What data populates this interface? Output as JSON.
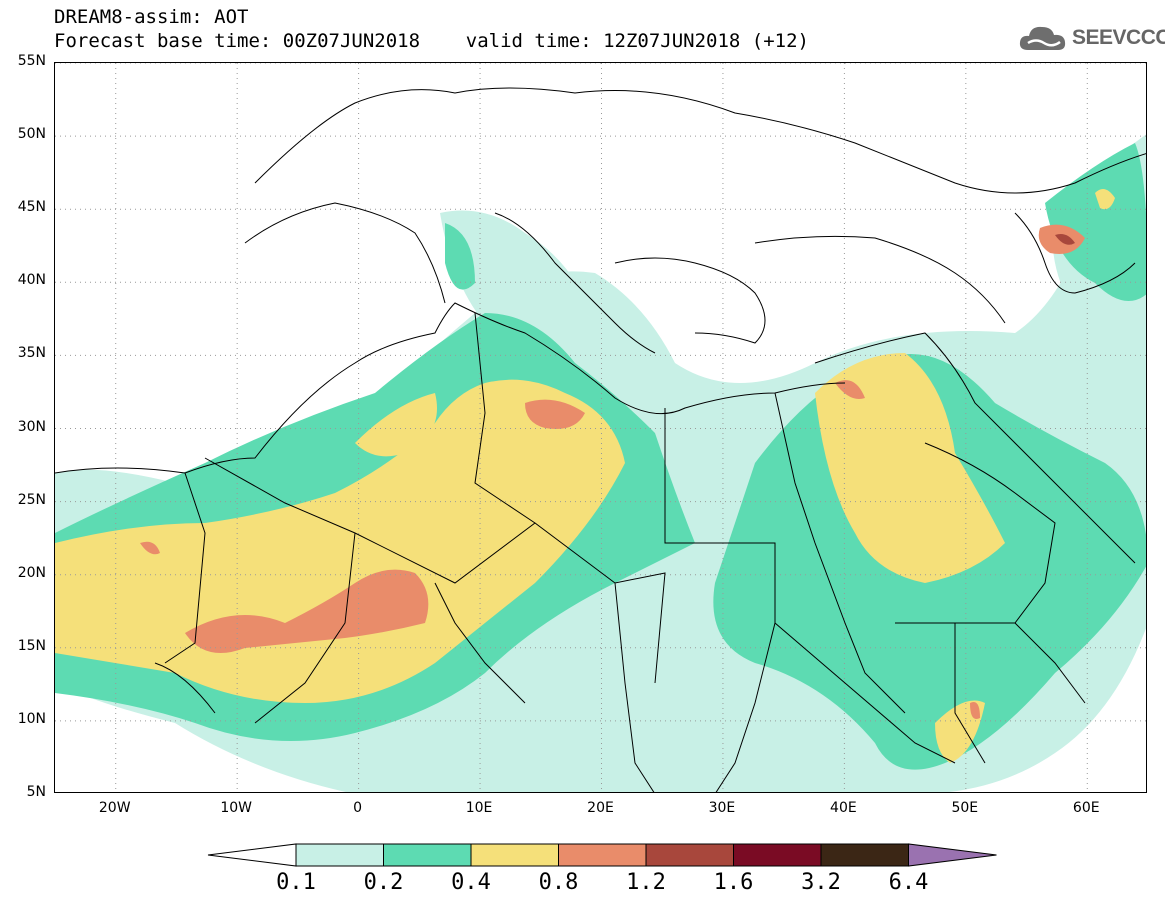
{
  "title": {
    "line1": "DREAM8-assim: AOT",
    "line2": "Forecast base time: 00Z07JUN2018    valid time: 12Z07JUN2018 (+12)"
  },
  "logo": {
    "text": "SEEVCCC",
    "icon": "cloud-icon"
  },
  "map": {
    "variable": "AOT",
    "lat_range": [
      5,
      55
    ],
    "lon_range": [
      -25,
      65
    ],
    "grid": "dotted",
    "lat_labels": [
      "55N",
      "50N",
      "45N",
      "40N",
      "35N",
      "30N",
      "25N",
      "20N",
      "15N",
      "10N",
      "5N"
    ],
    "lat_values": [
      55,
      50,
      45,
      40,
      35,
      30,
      25,
      20,
      15,
      10,
      5
    ],
    "lon_labels": [
      "20W",
      "10W",
      "0",
      "10E",
      "20E",
      "30E",
      "40E",
      "50E",
      "60E"
    ],
    "lon_values": [
      -20,
      -10,
      0,
      10,
      20,
      30,
      40,
      50,
      60
    ]
  },
  "colorbar": {
    "levels": [
      "0.1",
      "0.2",
      "0.4",
      "0.8",
      "1.2",
      "1.6",
      "3.2",
      "6.4"
    ],
    "colors": [
      "#ffffff",
      "#c8f0e6",
      "#5ddbb2",
      "#f5e07a",
      "#e98c6a",
      "#a8473c",
      "#7a0b24",
      "#3b2615",
      "#9a72b0"
    ]
  }
}
